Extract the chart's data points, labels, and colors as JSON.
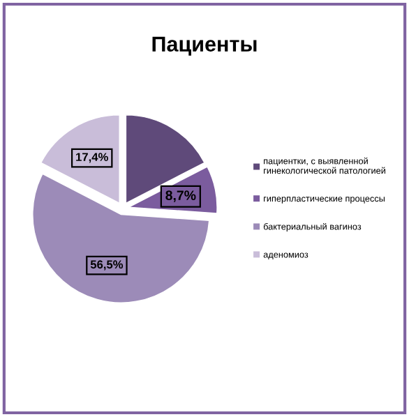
{
  "chart_data": {
    "type": "pie",
    "title": "Пациенты",
    "categories": [
      "пациентки, с выявленной\nгинекологической патологией",
      "гиперпластические процессы",
      "бактериальный вагиноз",
      "аденомиоз"
    ],
    "values": [
      17.4,
      8.7,
      56.5,
      17.4
    ],
    "colors": [
      "#5f4a7a",
      "#7b5c9e",
      "#9c8bb8",
      "#c9bdd9"
    ],
    "value_labels": [
      null,
      "8,7%",
      "56,5%",
      "17,4%"
    ],
    "legend": "right"
  }
}
